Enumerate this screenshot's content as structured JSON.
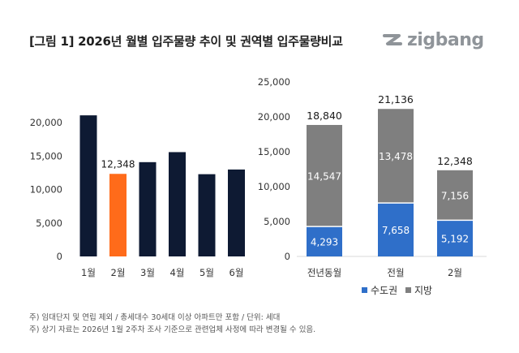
{
  "header": {
    "title": "[그림 1] 2026년 월별 입주물량 추이 및 권역별 입주물량비교",
    "brand": "zigbang"
  },
  "colors": {
    "navy": "#0e1a33",
    "orange": "#ff6b1a",
    "gray": "#7f7f7f",
    "blue": "#2f6fc9",
    "grid": "#d9d9d9"
  },
  "chart_data": [
    {
      "type": "bar",
      "categories": [
        "1월",
        "2월",
        "3월",
        "4월",
        "5월",
        "6월"
      ],
      "values": [
        21100,
        12348,
        14100,
        15600,
        12300,
        13000
      ],
      "highlight_index": 1,
      "highlight_label": "12,348",
      "ylim": [
        0,
        25000
      ],
      "yticks": [
        0,
        5000,
        10000,
        15000,
        20000
      ],
      "ytick_labels": [
        "0",
        "5,000",
        "10,000",
        "15,000",
        "20,000"
      ],
      "grid": false
    },
    {
      "type": "bar",
      "stacked": true,
      "categories": [
        "전년동월",
        "전월",
        "2월"
      ],
      "series": [
        {
          "name": "수도권",
          "values": [
            4293,
            7658,
            5192
          ],
          "labels": [
            "4,293",
            "7,658",
            "5,192"
          ]
        },
        {
          "name": "지방",
          "values": [
            14547,
            13478,
            7156
          ],
          "labels": [
            "14,547",
            "13,478",
            "7,156"
          ]
        }
      ],
      "totals": [
        18840,
        21136,
        12348
      ],
      "total_labels": [
        "18,840",
        "21,136",
        "12,348"
      ],
      "ylim": [
        0,
        25000
      ],
      "yticks": [
        0,
        5000,
        10000,
        15000,
        20000,
        25000
      ],
      "ytick_labels": [
        "0",
        "5,000",
        "10,000",
        "15,000",
        "20,000",
        "25,000"
      ],
      "legend_position": "bottom",
      "grid": false
    }
  ],
  "legend": {
    "items": [
      "수도권",
      "지방"
    ]
  },
  "footnotes": [
    "주) 임대단지 및 연립 제외 / 총세대수 30세대 이상 아파트만 포함 / 단위: 세대",
    "주) 상기 자료는 2026년 1월 2주차 조사 기준으로 관련업체 사정에 따라 변경될 수 있음."
  ]
}
